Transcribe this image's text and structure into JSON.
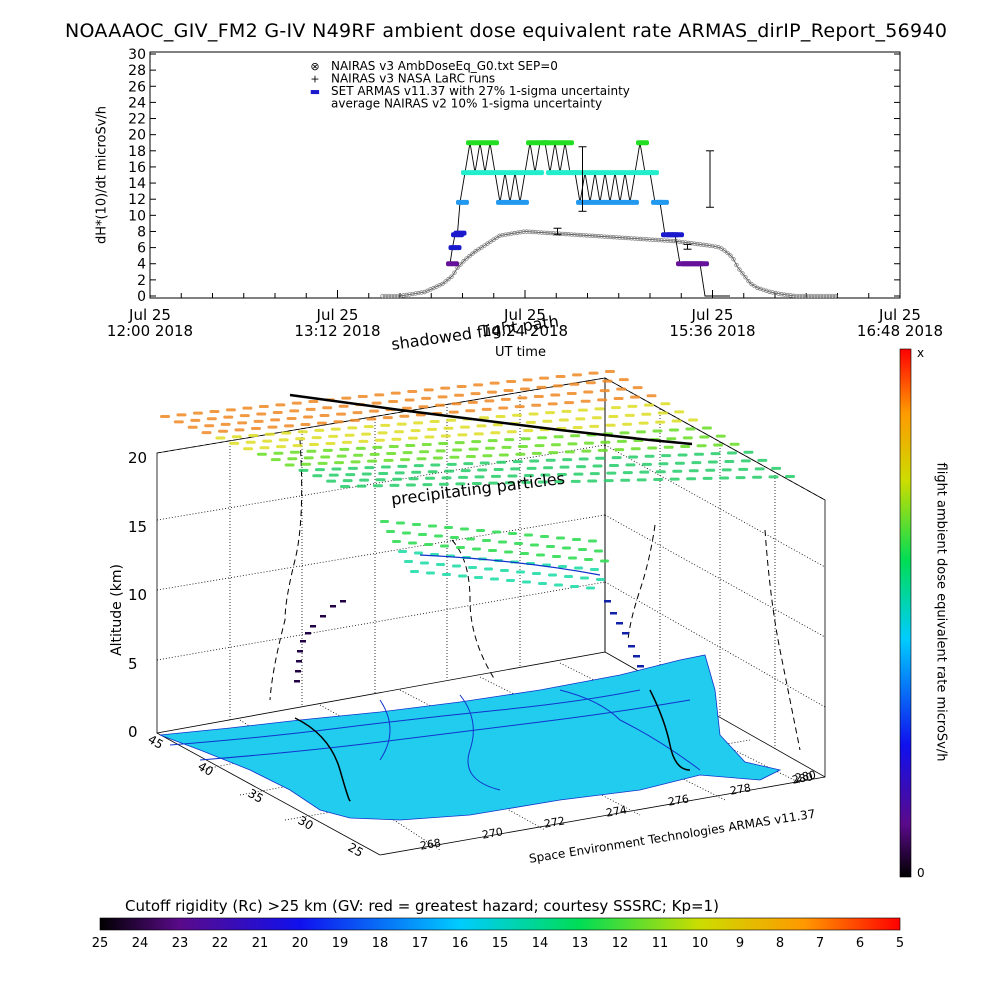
{
  "title": "NOAAAOC_GIV_FM2 G-IV    N49RF   ambient dose equivalent rate ARMAS_dirIP_Report_56940",
  "colors": {
    "green": "#22dd22",
    "cyan": "#22eecc",
    "blue": "#2299ee",
    "navy": "#1a1acc",
    "purple": "#661199",
    "nairas": "#777777",
    "map": "#22ccee"
  },
  "chart_data": [
    {
      "type": "scatter",
      "ylabel": "dH*(10)/dt microSv/h",
      "xlabel": "UT time",
      "ylim": [
        0,
        30
      ],
      "y_ticks": [
        "0",
        "2",
        "4",
        "6",
        "8",
        "10",
        "12",
        "14",
        "16",
        "18",
        "20",
        "22",
        "24",
        "26",
        "28",
        "30"
      ],
      "x_ticks": [
        {
          "line1": "Jul 25",
          "line2": "12:00 2018"
        },
        {
          "line1": "Jul 25",
          "line2": "13:12 2018"
        },
        {
          "line1": "Jul 25",
          "line2": "14:24 2018"
        },
        {
          "line1": "Jul 25",
          "line2": "15:36 2018"
        },
        {
          "line1": "Jul 25",
          "line2": "16:48 2018"
        }
      ],
      "legend": [
        {
          "symbol": "⊗",
          "label": "NAIRAS v3 AmbDoseEq_G0.txt SEP=0"
        },
        {
          "symbol": "+",
          "label": "NAIRAS v3 NASA LaRC runs"
        },
        {
          "symbol": "▬",
          "label": "SET ARMAS v11.37 with 27% 1-sigma uncertainty"
        },
        {
          "symbol": "",
          "label": "average NAIRAS v2 10% 1-sigma uncertainty"
        }
      ],
      "series": [
        {
          "x_minutes": [
            93,
            100,
            110,
            117,
            121,
            123,
            126,
            130,
            135,
            140,
            150,
            160,
            170,
            180,
            190,
            200,
            210,
            215,
            220,
            225,
            228,
            230,
            233,
            235,
            238,
            240,
            243,
            248,
            253,
            258,
            263,
            268,
            275
          ],
          "y": [
            0,
            0,
            0.5,
            1.5,
            2.5,
            3.5,
            4.5,
            5.5,
            6.5,
            7.5,
            8,
            7.8,
            7.6,
            7.4,
            7.2,
            7.0,
            6.8,
            6.6,
            6.4,
            6.2,
            6.0,
            5.6,
            4.8,
            3.6,
            2.4,
            1.6,
            1.0,
            0.5,
            0.2,
            0,
            0,
            0,
            0
          ]
        },
        {
          "x_minutes": [
            120,
            121,
            122,
            123,
            124,
            126,
            128,
            130,
            132,
            134,
            136,
            138,
            140,
            142,
            144,
            146,
            148,
            150,
            152,
            154,
            156,
            158,
            160,
            162,
            164,
            166,
            168,
            170,
            172,
            174,
            176,
            178,
            180,
            182,
            184,
            186,
            188,
            190,
            192,
            194,
            196,
            198,
            200,
            202,
            204,
            206,
            208,
            210,
            212,
            214,
            216,
            218,
            220,
            222,
            224,
            226,
            228,
            230,
            232
          ],
          "y": [
            4,
            6,
            7.6,
            7.8,
            11.6,
            15.3,
            19,
            15.3,
            19,
            15.3,
            19,
            15.3,
            11.6,
            15.3,
            11.6,
            15.3,
            11.6,
            15.3,
            19,
            15.3,
            19,
            19,
            15.3,
            19,
            15.3,
            19,
            15.3,
            15.3,
            11.6,
            15.3,
            11.6,
            15.3,
            11.6,
            15.3,
            11.6,
            15.3,
            11.6,
            15.3,
            11.6,
            15.3,
            19,
            15.3,
            15.3,
            11.6,
            11.6,
            7.6,
            7.6,
            7.6,
            4,
            4,
            4,
            4,
            4,
            0,
            0,
            0,
            0,
            0,
            0
          ]
        }
      ]
    },
    {
      "type": "3d-trajectory",
      "zlabel": "Altitude (km)",
      "z_ticks": [
        "0",
        "5",
        "10",
        "15",
        "20"
      ],
      "lat_ticks": [
        "45",
        "40",
        "35",
        "30",
        "25"
      ],
      "lon_ticks": [
        "268",
        "270",
        "272",
        "274",
        "276",
        "278",
        "280"
      ],
      "annotations": [
        "shadowed flight path",
        "precipitating particles"
      ],
      "credit": "Space Environment Technologies ARMAS v11.37"
    }
  ],
  "colorbar_right": {
    "label": "flight ambient dose equivalent rate microSv/h",
    "top": "x",
    "bottom": "0"
  },
  "colorbar_bottom": {
    "title": "Cutoff rigidity (Rc) >25 km (GV: red = greatest hazard; courtesy SSSRC; Kp=1)",
    "ticks": [
      "25",
      "24",
      "23",
      "22",
      "21",
      "20",
      "19",
      "18",
      "17",
      "16",
      "15",
      "14",
      "13",
      "12",
      "11",
      "10",
      "9",
      "8",
      "7",
      "6",
      "5"
    ]
  }
}
